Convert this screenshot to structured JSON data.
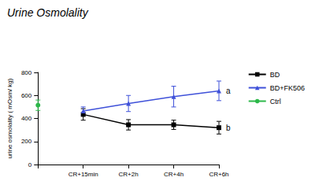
{
  "chart_data": {
    "type": "line",
    "title": "Urine Osmolality",
    "y_label": "urine osmolality ( mOsm/ kg)",
    "categories": [
      null,
      "CR+15min",
      "CR+2h",
      "CR+4h",
      "CR+6h"
    ],
    "series": [
      {
        "name": "BD",
        "color": "#000000",
        "marker": "rect",
        "values": [
          null,
          435,
          345,
          345,
          320
        ],
        "errors": [
          null,
          50,
          45,
          40,
          55
        ]
      },
      {
        "name": "BD+FK506",
        "color": "#3f51d9",
        "marker": "triangle",
        "values": [
          null,
          465,
          530,
          590,
          640
        ],
        "errors": [
          null,
          35,
          70,
          90,
          85
        ]
      },
      {
        "name": "Ctrl",
        "color": "#2db84a",
        "marker": "circle",
        "values": [
          515,
          null,
          null,
          null,
          null
        ],
        "errors": [
          45,
          null,
          null,
          null,
          null
        ]
      }
    ],
    "annotations": [
      {
        "text": "a",
        "series": "BD+FK506"
      },
      {
        "text": "b",
        "series": "BD"
      }
    ],
    "ylim": [
      0,
      800
    ],
    "yticks": [
      0,
      200,
      400,
      600,
      800
    ],
    "grid": false,
    "legend": "right"
  }
}
